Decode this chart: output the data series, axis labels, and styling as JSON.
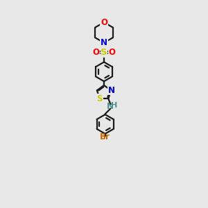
{
  "bg_color": "#e8e8e8",
  "bond_color": "#1a1a1a",
  "colors": {
    "O": "#ff0000",
    "N": "#0000cc",
    "S_sulfonyl": "#cccc00",
    "S_thiazole": "#cccc00",
    "Br": "#cc6600",
    "NH": "#4a9090",
    "H": "#4a9090"
  },
  "figsize": [
    3.0,
    3.0
  ],
  "dpi": 100
}
